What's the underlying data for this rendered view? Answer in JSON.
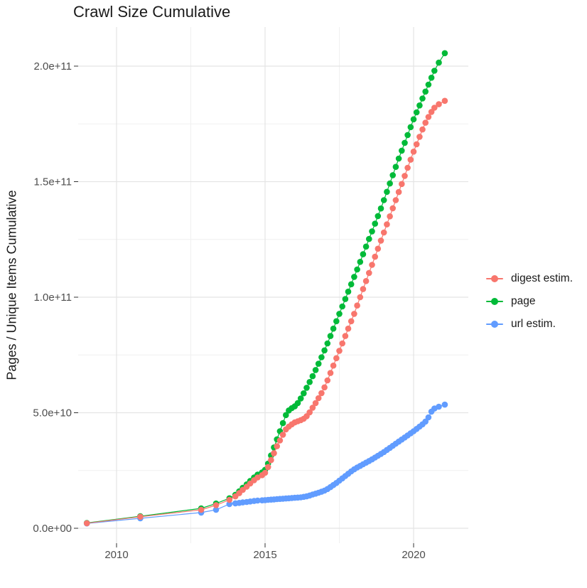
{
  "title": "Crawl Size Cumulative",
  "axes": {
    "y_label": "Pages / Unique Items Cumulative",
    "y_ticks": [
      {
        "label": "0.0e+00",
        "value": 0
      },
      {
        "label": "5.0e+10",
        "value": 50
      },
      {
        "label": "1.0e+11",
        "value": 100
      },
      {
        "label": "1.5e+11",
        "value": 150
      },
      {
        "label": "2.0e+11",
        "value": 200
      }
    ],
    "x_ticks": [
      {
        "label": "2010",
        "value": 2010
      },
      {
        "label": "2015",
        "value": 2015
      },
      {
        "label": "2020",
        "value": 2020
      }
    ]
  },
  "legend": [
    {
      "label": "digest estim.",
      "color": "#F8766D"
    },
    {
      "label": "page",
      "color": "#00BA38"
    },
    {
      "label": "url estim.",
      "color": "#619CFF"
    }
  ],
  "colors": {
    "grid_major": "#e4e4e4",
    "grid_minor": "#f0f0f0",
    "tick_mark": "#333333",
    "tick_text": "#4d4d4d"
  },
  "chart_data": {
    "type": "line",
    "title": "Crawl Size Cumulative",
    "xlabel": "",
    "ylabel": "Pages / Unique Items Cumulative",
    "x_unit": "crawl date (decimal year)",
    "values_unit": "1e9 (billions of pages / unique items)",
    "xlim": [
      2008.7,
      2021.9
    ],
    "ylim": [
      0,
      216000000000
    ],
    "x_major_ticks": [
      2010,
      2015,
      2020
    ],
    "x_minor_ticks": [
      2012.5,
      2017.5
    ],
    "y_major_ticks_billions": [
      0,
      50,
      100,
      150,
      200
    ],
    "y_minor_ticks_billions": [
      25,
      75,
      125,
      175
    ],
    "grid": "major+minor",
    "legend_position": "right",
    "marker": "point",
    "x": [
      2009.0,
      2010.8,
      2012.85,
      2013.35,
      2013.8,
      2014.0,
      2014.13,
      2014.25,
      2014.38,
      2014.5,
      2014.63,
      2014.75,
      2014.9,
      2015.0,
      2015.1,
      2015.2,
      2015.3,
      2015.4,
      2015.5,
      2015.6,
      2015.7,
      2015.8,
      2015.9,
      2016.0,
      2016.1,
      2016.2,
      2016.3,
      2016.4,
      2016.5,
      2016.6,
      2016.7,
      2016.8,
      2016.9,
      2017.0,
      2017.1,
      2017.2,
      2017.3,
      2017.4,
      2017.5,
      2017.6,
      2017.7,
      2017.8,
      2017.9,
      2018.0,
      2018.1,
      2018.2,
      2018.3,
      2018.4,
      2018.5,
      2018.6,
      2018.7,
      2018.8,
      2018.9,
      2019.0,
      2019.1,
      2019.2,
      2019.3,
      2019.4,
      2019.5,
      2019.6,
      2019.7,
      2019.8,
      2019.9,
      2020.0,
      2020.1,
      2020.2,
      2020.3,
      2020.4,
      2020.5,
      2020.6,
      2020.7,
      2020.85,
      2021.05
    ],
    "series": [
      {
        "name": "digest estim.",
        "color": "#F8766D",
        "values_billions": [
          2.2,
          5.0,
          8.0,
          10.0,
          12.3,
          13.8,
          15.2,
          16.6,
          18.0,
          19.4,
          20.8,
          22.0,
          23.0,
          24.0,
          26.5,
          29.5,
          32.5,
          35.5,
          38.0,
          40.5,
          42.8,
          44.0,
          45.0,
          45.8,
          46.3,
          46.8,
          47.4,
          48.5,
          50.2,
          52.2,
          54.2,
          56.3,
          58.5,
          61.0,
          64.0,
          67.2,
          70.4,
          73.6,
          76.8,
          80.0,
          83.2,
          86.4,
          89.6,
          92.8,
          96.4,
          100.0,
          103.5,
          107.0,
          110.5,
          114.0,
          117.5,
          121.0,
          124.5,
          128.0,
          131.5,
          135.0,
          138.5,
          142.0,
          145.5,
          149.0,
          152.5,
          156.0,
          159.5,
          163.0,
          166.2,
          169.4,
          172.6,
          175.5,
          178.0,
          180.2,
          182.0,
          183.5,
          185.0
        ]
      },
      {
        "name": "page",
        "color": "#00BA38",
        "values_billions": [
          2.3,
          5.2,
          8.6,
          10.7,
          13.0,
          14.5,
          16.0,
          17.5,
          19.0,
          20.5,
          22.0,
          23.2,
          24.2,
          25.3,
          28.0,
          31.5,
          35.0,
          38.5,
          42.0,
          45.5,
          49.0,
          51.0,
          52.0,
          52.8,
          54.2,
          56.2,
          58.4,
          60.8,
          63.3,
          65.8,
          68.5,
          71.2,
          74.0,
          77.0,
          80.0,
          83.2,
          86.4,
          89.6,
          92.8,
          96.0,
          99.2,
          102.4,
          105.6,
          108.8,
          112.0,
          115.3,
          118.6,
          121.9,
          125.2,
          128.5,
          131.8,
          135.1,
          138.4,
          142.0,
          145.6,
          149.2,
          152.8,
          156.4,
          160.0,
          163.4,
          166.8,
          170.2,
          173.6,
          177.0,
          180.0,
          183.0,
          186.0,
          189.0,
          192.0,
          195.0,
          198.0,
          201.5,
          205.6
        ]
      },
      {
        "name": "url estim.",
        "color": "#619CFF",
        "values_billions": [
          2.1,
          4.3,
          6.8,
          8.0,
          10.5,
          10.8,
          11.0,
          11.2,
          11.4,
          11.6,
          11.8,
          12.0,
          12.1,
          12.2,
          12.3,
          12.4,
          12.5,
          12.6,
          12.7,
          12.8,
          12.9,
          13.0,
          13.1,
          13.2,
          13.3,
          13.4,
          13.6,
          13.8,
          14.2,
          14.6,
          15.0,
          15.4,
          15.8,
          16.3,
          17.0,
          17.8,
          18.7,
          19.6,
          20.6,
          21.6,
          22.6,
          23.6,
          24.6,
          25.5,
          26.3,
          27.0,
          27.7,
          28.4,
          29.1,
          29.8,
          30.6,
          31.4,
          32.2,
          33.0,
          33.9,
          34.8,
          35.7,
          36.6,
          37.5,
          38.4,
          39.3,
          40.2,
          41.1,
          42.0,
          43.0,
          44.0,
          45.0,
          46.2,
          48.0,
          50.5,
          51.8,
          52.6,
          53.5
        ]
      }
    ]
  }
}
